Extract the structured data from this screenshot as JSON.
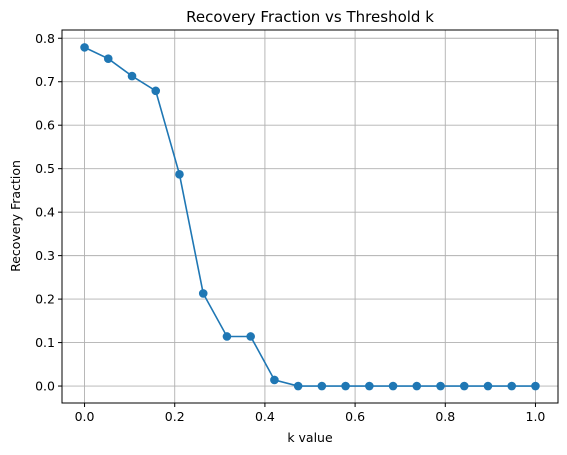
{
  "chart_data": {
    "type": "line",
    "title": "Recovery Fraction vs Threshold k",
    "xlabel": "k value",
    "ylabel": "Recovery Fraction",
    "xlim": [
      -0.05,
      1.05
    ],
    "ylim": [
      -0.039,
      0.819
    ],
    "xticks": [
      0.0,
      0.2,
      0.4,
      0.6,
      0.8,
      1.0
    ],
    "xtick_labels": [
      "0.0",
      "0.2",
      "0.4",
      "0.6",
      "0.8",
      "1.0"
    ],
    "yticks": [
      0.0,
      0.1,
      0.2,
      0.3,
      0.4,
      0.5,
      0.6,
      0.7,
      0.8
    ],
    "ytick_labels": [
      "0.0",
      "0.1",
      "0.2",
      "0.3",
      "0.4",
      "0.5",
      "0.6",
      "0.7",
      "0.8"
    ],
    "grid": true,
    "series": [
      {
        "color": "#1f77b4",
        "marker": "circle",
        "x": [
          0.0,
          0.0526,
          0.1053,
          0.1579,
          0.2105,
          0.2632,
          0.3158,
          0.3684,
          0.4211,
          0.4737,
          0.5263,
          0.5789,
          0.6316,
          0.6842,
          0.7368,
          0.7895,
          0.8421,
          0.8947,
          0.9474,
          1.0
        ],
        "y": [
          0.779,
          0.753,
          0.713,
          0.679,
          0.487,
          0.213,
          0.114,
          0.114,
          0.014,
          0.0,
          0.0,
          0.0,
          0.0,
          0.0,
          0.0,
          0.0,
          0.0,
          0.0,
          0.0,
          0.0
        ]
      }
    ]
  }
}
